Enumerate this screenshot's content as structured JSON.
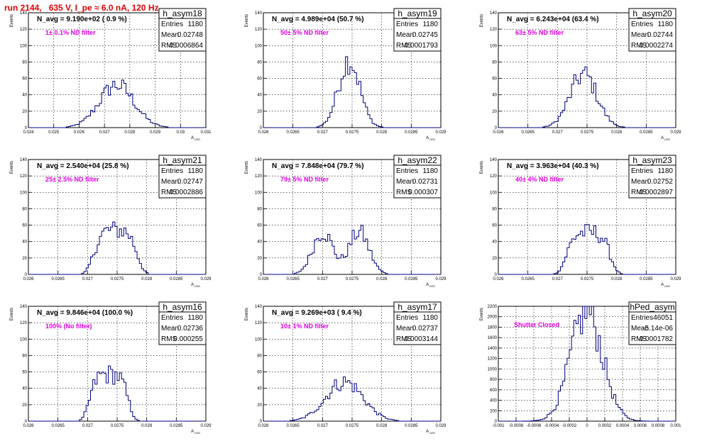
{
  "run_title": "run 2144,   635 V, I_pe ≈ 6.0 nA, 120 Hz",
  "colors": {
    "title": "#e00000",
    "histogram": "#00007f",
    "filter_label": "#e000e0"
  },
  "stat_labels": {
    "entries": "Entries",
    "mean": "Mean",
    "rms": "RMS"
  },
  "chart_data": [
    {
      "type": "histogram",
      "name": "h_asym18",
      "navg": "N_avg = 9.190e+02 ( 0.9 %)",
      "filter": "1± 0.1% ND filter",
      "entries": "1180",
      "mean": "0.02748",
      "rms": "0.0006864",
      "ylabel": "Events",
      "xlabel": "A_LED",
      "xlim": [
        0.024,
        0.031
      ],
      "ylim": [
        0,
        140
      ],
      "xticks": [
        "0.024",
        "0.025",
        "0.026",
        "0.027",
        "0.028",
        "0.029",
        "0.03",
        "0.031"
      ],
      "yticks": [
        "0",
        "20",
        "40",
        "60",
        "80",
        "100",
        "120",
        "140"
      ],
      "grid": true,
      "dist_mean": 0.02748,
      "dist_rms": 0.0006864,
      "peak": 52,
      "shape": "single"
    },
    {
      "type": "histogram",
      "name": "h_asym19",
      "navg": "N_avg = 4.989e+04 (50.7 %)",
      "filter": "50± 5% ND filter",
      "entries": "1180",
      "mean": "0.02745",
      "rms": "0.0001793",
      "ylabel": "Events",
      "xlabel": "A_LED",
      "xlim": [
        0.026,
        0.029
      ],
      "ylim": [
        0,
        140
      ],
      "xticks": [
        "0.026",
        "0.0265",
        "0.027",
        "0.0275",
        "0.028",
        "0.0285",
        "0.029"
      ],
      "yticks": [
        "0",
        "20",
        "40",
        "60",
        "80",
        "100",
        "120",
        "140"
      ],
      "grid": true,
      "dist_mean": 0.02745,
      "dist_rms": 0.0001793,
      "peak": 83,
      "shape": "single"
    },
    {
      "type": "histogram",
      "name": "h_asym20",
      "navg": "N_avg = 6.243e+04 (63.4 %)",
      "filter": "63± 5% ND filter",
      "entries": "1180",
      "mean": "0.02744",
      "rms": "0.0002274",
      "ylabel": "Events",
      "xlabel": "A_LED",
      "xlim": [
        0.026,
        0.029
      ],
      "ylim": [
        0,
        140
      ],
      "xticks": [
        "0.026",
        "0.0265",
        "0.027",
        "0.0275",
        "0.028",
        "0.0285",
        "0.029"
      ],
      "yticks": [
        "0",
        "20",
        "40",
        "60",
        "80",
        "100",
        "120",
        "140"
      ],
      "grid": true,
      "dist_mean": 0.02744,
      "dist_rms": 0.0002274,
      "peak": 65,
      "shape": "single"
    },
    {
      "type": "histogram",
      "name": "h_asym21",
      "navg": "N_avg = 2.540e+04 (25.8 %)",
      "filter": "25± 2.5% ND filter",
      "entries": "1180",
      "mean": "0.02747",
      "rms": "0.0002886",
      "ylabel": "Events",
      "xlabel": "A_LED",
      "xlim": [
        0.026,
        0.029
      ],
      "ylim": [
        0,
        140
      ],
      "xticks": [
        "0.026",
        "0.0265",
        "0.027",
        "0.0275",
        "0.028",
        "0.0285",
        "0.029"
      ],
      "yticks": [
        "0",
        "20",
        "40",
        "60",
        "80",
        "100",
        "120",
        "140"
      ],
      "grid": true,
      "dist_mean": 0.02747,
      "dist_rms": 0.0002886,
      "peak": 54,
      "shape": "flat"
    },
    {
      "type": "histogram",
      "name": "h_asym22",
      "navg": "N_avg = 7.848e+04 (79.7 %)",
      "filter": "79± 5% ND filter",
      "entries": "1180",
      "mean": "0.02731",
      "rms": "0.000307",
      "ylabel": "Events",
      "xlabel": "A_LED",
      "xlim": [
        0.026,
        0.029
      ],
      "ylim": [
        0,
        140
      ],
      "xticks": [
        "0.026",
        "0.0265",
        "0.027",
        "0.0275",
        "0.028",
        "0.0285",
        "0.029"
      ],
      "yticks": [
        "0",
        "20",
        "40",
        "60",
        "80",
        "100",
        "120",
        "140"
      ],
      "grid": true,
      "dist_mean": 0.02731,
      "dist_rms": 0.000307,
      "peak": 52,
      "shape": "double"
    },
    {
      "type": "histogram",
      "name": "h_asym23",
      "navg": "N_avg = 3.963e+04 (40.3 %)",
      "filter": "40± 4% ND filter",
      "entries": "1180",
      "mean": "0.02752",
      "rms": "0.0002897",
      "ylabel": "Events",
      "xlabel": "A_LED",
      "xlim": [
        0.026,
        0.029
      ],
      "ylim": [
        0,
        140
      ],
      "xticks": [
        "0.026",
        "0.0265",
        "0.027",
        "0.0275",
        "0.028",
        "0.0285",
        "0.029"
      ],
      "yticks": [
        "0",
        "20",
        "40",
        "60",
        "80",
        "100",
        "120",
        "140"
      ],
      "grid": true,
      "dist_mean": 0.02752,
      "dist_rms": 0.0002897,
      "peak": 51,
      "shape": "flat"
    },
    {
      "type": "histogram",
      "name": "h_asym16",
      "navg": "N_avg = 9.846e+04 (100.0 %)",
      "filter": "100% (No filter)",
      "entries": "1180",
      "mean": "0.02736",
      "rms": "0.000255",
      "ylabel": "Events",
      "xlabel": "A_LED",
      "xlim": [
        0.026,
        0.029
      ],
      "ylim": [
        0,
        140
      ],
      "xticks": [
        "0.026",
        "0.0265",
        "0.027",
        "0.0275",
        "0.028",
        "0.0285",
        "0.029"
      ],
      "yticks": [
        "0",
        "20",
        "40",
        "60",
        "80",
        "100",
        "120",
        "140"
      ],
      "grid": true,
      "dist_mean": 0.02736,
      "dist_rms": 0.000255,
      "peak": 57,
      "shape": "flat"
    },
    {
      "type": "histogram",
      "name": "h_asym17",
      "navg": "N_avg = 9.269e+03 ( 9.4 %)",
      "filter": "10± 1% ND filter",
      "entries": "1180",
      "mean": "0.02737",
      "rms": "0.0003144",
      "ylabel": "Events",
      "xlabel": "A_LED",
      "xlim": [
        0.026,
        0.029
      ],
      "ylim": [
        0,
        140
      ],
      "xticks": [
        "0.026",
        "0.0265",
        "0.027",
        "0.0275",
        "0.028",
        "0.0285",
        "0.029"
      ],
      "yticks": [
        "0",
        "20",
        "40",
        "60",
        "80",
        "100",
        "120",
        "140"
      ],
      "grid": true,
      "dist_mean": 0.02737,
      "dist_rms": 0.0003144,
      "peak": 48,
      "shape": "single"
    },
    {
      "type": "histogram",
      "name": "hPed_asym",
      "navg": "",
      "filter": "Shutter Closed",
      "entries": "46051",
      "mean": "-5.14e-06",
      "rms": "0.0001782",
      "ylabel": "Events",
      "xlabel": "",
      "xlim": [
        -0.001,
        0.001
      ],
      "ylim": [
        0,
        2200
      ],
      "xticks": [
        "-0.001",
        "-0.0008",
        "-0.0006",
        "-0.0004",
        "-0.0002",
        "0",
        "0.0002",
        "0.0004",
        "0.0006",
        "0.0008",
        "0.001"
      ],
      "yticks": [
        "0",
        "200",
        "400",
        "600",
        "800",
        "1000",
        "1200",
        "1400",
        "1600",
        "1800",
        "2000",
        "2200"
      ],
      "grid": true,
      "dist_mean": -5.14e-06,
      "dist_rms": 0.0001782,
      "peak": 2100,
      "shape": "single"
    }
  ]
}
